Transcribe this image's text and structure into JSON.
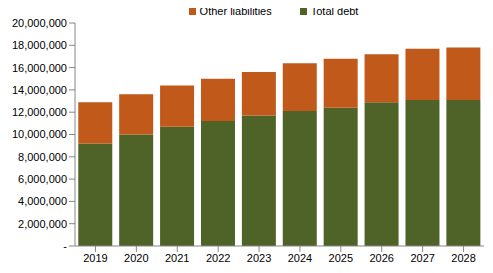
{
  "chart_data": {
    "type": "bar",
    "stacked": true,
    "grid": false,
    "legend": "top",
    "categories": [
      "2019",
      "2020",
      "2021",
      "2022",
      "2023",
      "2024",
      "2025",
      "2026",
      "2027",
      "2028"
    ],
    "series": [
      {
        "name": "Total debt",
        "color": "#4f6228",
        "values": [
          9200000,
          10000000,
          10700000,
          11200000,
          11700000,
          12100000,
          12400000,
          12900000,
          13100000,
          13100000
        ]
      },
      {
        "name": "Other liabilities",
        "color": "#c0591a",
        "values": [
          3700000,
          3600000,
          3700000,
          3800000,
          3900000,
          4300000,
          4400000,
          4300000,
          4600000,
          4700000
        ]
      }
    ],
    "ylim": [
      0,
      20000000
    ],
    "yticks": [
      {
        "value": 0,
        "label": "-"
      },
      {
        "value": 2000000,
        "label": "2,000,000"
      },
      {
        "value": 4000000,
        "label": "4,000,000"
      },
      {
        "value": 6000000,
        "label": "6,000,000"
      },
      {
        "value": 8000000,
        "label": "8,000,000"
      },
      {
        "value": 10000000,
        "label": "10,000,000"
      },
      {
        "value": 12000000,
        "label": "12,000,000"
      },
      {
        "value": 14000000,
        "label": "14,000,000"
      },
      {
        "value": 16000000,
        "label": "16,000,000"
      },
      {
        "value": 18000000,
        "label": "18,000,000"
      },
      {
        "value": 20000000,
        "label": "20,000,000"
      }
    ]
  }
}
